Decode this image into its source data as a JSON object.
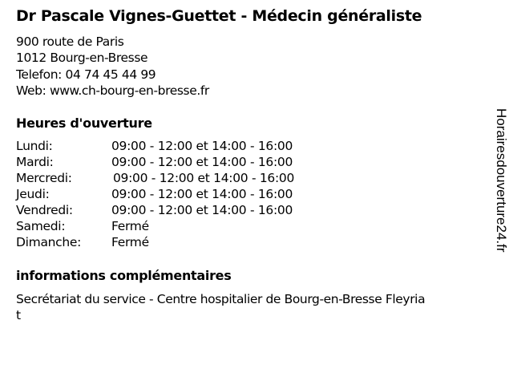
{
  "title": "Dr Pascale Vignes-Guettet - Médecin généraliste",
  "address": {
    "street": "900 route de Paris",
    "city": "1012 Bourg-en-Bresse",
    "phone": "Telefon: 04 74 45 44 99",
    "web": "Web: www.ch-bourg-en-bresse.fr"
  },
  "hours": {
    "heading": "Heures d'ouverture",
    "rows": [
      {
        "day": "Lundi:",
        "time": "09:00 - 12:00 et 14:00 - 16:00"
      },
      {
        "day": "Mardi:",
        "time": "09:00 - 12:00 et 14:00 - 16:00"
      },
      {
        "day": "Mercredi:",
        "time": "09:00 - 12:00 et 14:00 - 16:00"
      },
      {
        "day": "Jeudi:",
        "time": "09:00 - 12:00 et 14:00 - 16:00"
      },
      {
        "day": "Vendredi:",
        "time": "09:00 - 12:00 et 14:00 - 16:00"
      },
      {
        "day": "Samedi:",
        "time": "Fermé"
      },
      {
        "day": "Dimanche:",
        "time": "Fermé"
      }
    ]
  },
  "info": {
    "heading": "informations complémentaires",
    "line1": "Secrétariat du service - Centre hospitalier de Bourg-en-Bresse Fleyria",
    "line2": "t"
  },
  "watermark": "Horairesdouverture24.fr"
}
